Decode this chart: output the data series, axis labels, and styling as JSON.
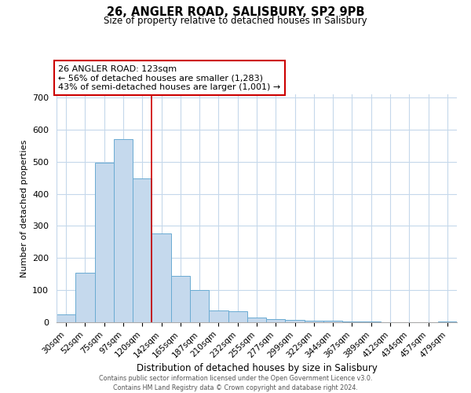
{
  "title": "26, ANGLER ROAD, SALISBURY, SP2 9PB",
  "subtitle": "Size of property relative to detached houses in Salisbury",
  "xlabel": "Distribution of detached houses by size in Salisbury",
  "ylabel": "Number of detached properties",
  "bar_labels": [
    "30sqm",
    "52sqm",
    "75sqm",
    "97sqm",
    "120sqm",
    "142sqm",
    "165sqm",
    "187sqm",
    "210sqm",
    "232sqm",
    "255sqm",
    "277sqm",
    "299sqm",
    "322sqm",
    "344sqm",
    "367sqm",
    "389sqm",
    "412sqm",
    "434sqm",
    "457sqm",
    "479sqm"
  ],
  "bar_values": [
    25,
    155,
    497,
    570,
    447,
    277,
    145,
    100,
    37,
    35,
    14,
    10,
    7,
    5,
    4,
    3,
    2,
    1,
    1,
    0,
    3
  ],
  "bar_color": "#c5d9ed",
  "bar_edgecolor": "#6aabd2",
  "property_line_index": 4,
  "property_line_color": "#cc0000",
  "annotation_title": "26 ANGLER ROAD: 123sqm",
  "annotation_line1": "← 56% of detached houses are smaller (1,283)",
  "annotation_line2": "43% of semi-detached houses are larger (1,001) →",
  "annotation_box_color": "#ffffff",
  "annotation_box_edgecolor": "#cc0000",
  "ylim": [
    0,
    710
  ],
  "yticks": [
    0,
    100,
    200,
    300,
    400,
    500,
    600,
    700
  ],
  "footer1": "Contains HM Land Registry data © Crown copyright and database right 2024.",
  "footer2": "Contains public sector information licensed under the Open Government Licence v3.0.",
  "background_color": "#ffffff",
  "grid_color": "#c5d8eb"
}
